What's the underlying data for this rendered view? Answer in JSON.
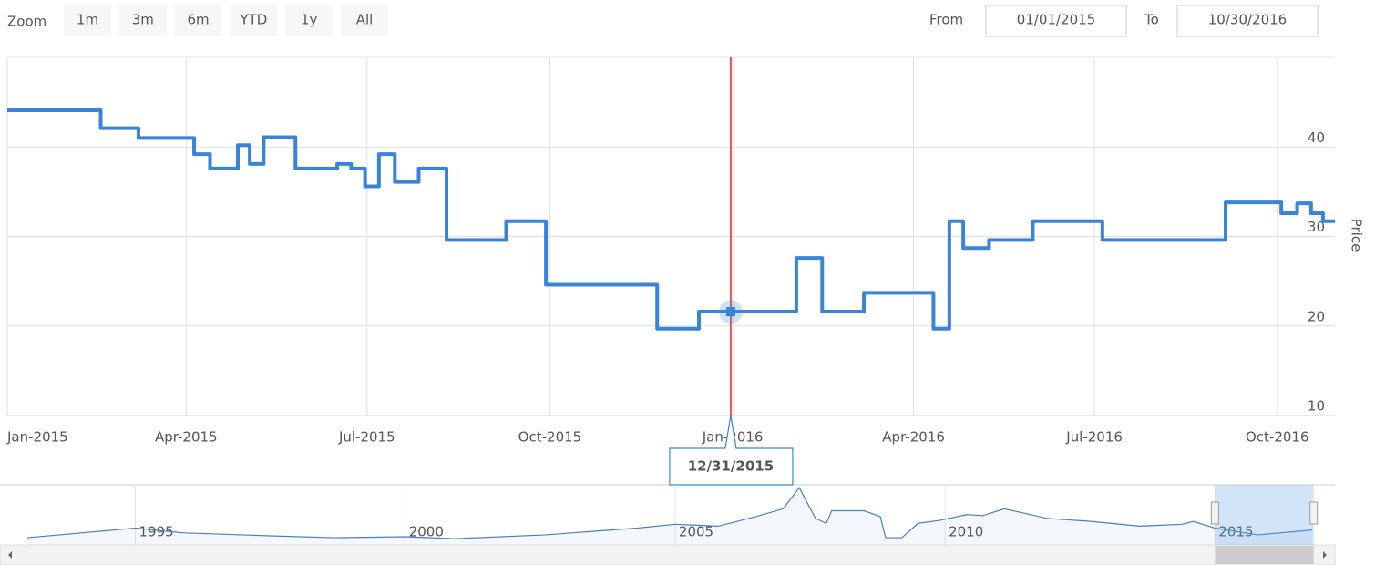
{
  "range_selector": {
    "zoom_label": "Zoom",
    "buttons": [
      "1m",
      "3m",
      "6m",
      "YTD",
      "1y",
      "All"
    ],
    "from_label": "From",
    "from": "01/01/2015",
    "to_label": "To",
    "to": "10/30/2016"
  },
  "chart_data": {
    "type": "line",
    "step": true,
    "y_label": "Price",
    "color": "#3a84d8",
    "grid": true,
    "x": [
      "2015-01-01",
      "2015-02-17",
      "2015-03-08",
      "2015-04-05",
      "2015-04-13",
      "2015-04-27",
      "2015-05-03",
      "2015-05-10",
      "2015-05-26",
      "2015-06-16",
      "2015-06-23",
      "2015-06-30",
      "2015-07-07",
      "2015-07-15",
      "2015-07-27",
      "2015-08-10",
      "2015-09-09",
      "2015-09-29",
      "2015-11-24",
      "2015-12-15",
      "2016-02-02",
      "2016-02-15",
      "2016-03-07",
      "2016-04-11",
      "2016-04-19",
      "2016-04-26",
      "2016-05-09",
      "2016-05-31",
      "2016-07-05",
      "2016-09-05",
      "2016-10-03",
      "2016-10-11",
      "2016-10-18",
      "2016-10-24"
    ],
    "series": [
      {
        "name": "Price",
        "color": "#3a84d8",
        "values": [
          44.1,
          42.1,
          41.0,
          39.2,
          37.6,
          40.2,
          38.1,
          41.1,
          37.6,
          38.1,
          37.6,
          35.6,
          39.2,
          36.1,
          37.6,
          29.6,
          31.7,
          24.6,
          19.7,
          21.6,
          27.6,
          21.6,
          23.7,
          19.7,
          31.7,
          28.7,
          29.6,
          31.7,
          29.6,
          33.8,
          32.6,
          33.7,
          32.6,
          31.7
        ]
      }
    ],
    "xlim": [
      "2015-01-01",
      "2016-10-30"
    ],
    "xticks": [
      {
        "value": "2015-01-01",
        "label": "Jan-2015"
      },
      {
        "value": "2015-04-01",
        "label": "Apr-2015"
      },
      {
        "value": "2015-07-01",
        "label": "Jul-2015"
      },
      {
        "value": "2015-10-01",
        "label": "Oct-2015"
      },
      {
        "value": "2016-01-01",
        "label": "Jan-2016"
      },
      {
        "value": "2016-04-01",
        "label": "Apr-2016"
      },
      {
        "value": "2016-07-01",
        "label": "Jul-2016"
      },
      {
        "value": "2016-10-01",
        "label": "Oct-2016"
      }
    ],
    "ylim": [
      10,
      50
    ],
    "yticks": [
      10,
      20,
      30,
      40
    ],
    "tooltip": {
      "x": {
        "value": "2015-12-31",
        "label": "12/31/2015"
      }
    }
  },
  "navigator": {
    "type": "area",
    "color": "#4a7fc1",
    "x": [
      1993.0,
      1995.0,
      1995.9,
      1997.5,
      1998.7,
      2000.0,
      2000.9,
      2002.6,
      2004.3,
      2005.0,
      2005.8,
      2006.5,
      2007.0,
      2007.3,
      2007.6,
      2007.8,
      2007.9,
      2008.5,
      2008.8,
      2008.9,
      2009.2,
      2009.5,
      2009.9,
      2010.4,
      2010.7,
      2011.1,
      2011.9,
      2012.7,
      2013.6,
      2014.4,
      2014.6,
      2015.0,
      2015.8,
      2016.8
    ],
    "values": [
      15,
      35,
      25,
      19,
      15,
      17,
      13,
      21,
      35,
      43,
      39,
      59,
      75,
      119,
      55,
      45,
      71,
      71,
      59,
      15,
      15,
      45,
      51,
      63,
      61,
      75,
      55,
      49,
      39,
      43,
      49,
      35,
      21,
      31
    ],
    "xlim": [
      1993.0,
      2016.8
    ],
    "ylim": [
      0,
      125
    ],
    "xticks": [
      1995,
      2000,
      2005,
      2010,
      2015
    ]
  }
}
